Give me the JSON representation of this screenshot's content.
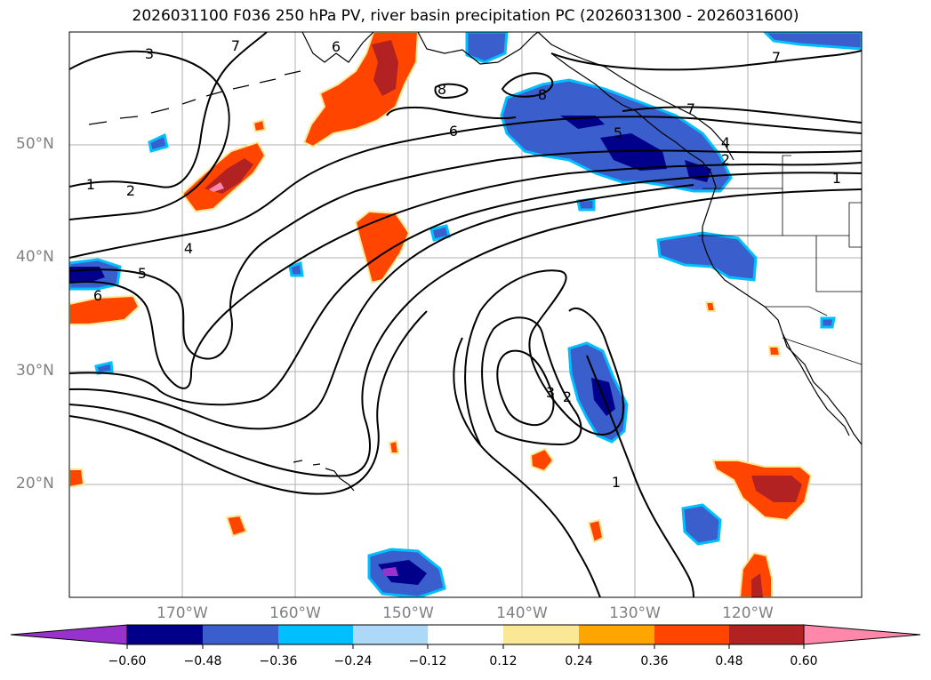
{
  "title": "2026031100 F036 250 hPa PV, river basin precipitation PC (2026031300 - 2026031600)",
  "lat_labels": [
    "50°N",
    "40°N",
    "30°N",
    "20°N"
  ],
  "lon_labels": [
    "170°W",
    "160°W",
    "150°W",
    "140°W",
    "130°W",
    "120°W"
  ],
  "colorbar": {
    "ticks": [
      "−0.60",
      "−0.48",
      "−0.36",
      "−0.24",
      "−0.12",
      "0.12",
      "0.24",
      "0.36",
      "0.48",
      "0.60"
    ],
    "colors": [
      "#9932cc",
      "#00008b",
      "#3a5fcd",
      "#00bfff",
      "#add8f7",
      "#ffffff",
      "#fbe897",
      "#ffa500",
      "#ff4500",
      "#b22222",
      "#ff88aa"
    ]
  },
  "contour_labels": [
    "3",
    "7",
    "6",
    "8",
    "8",
    "7",
    "7",
    "1",
    "2",
    "6",
    "5",
    "4",
    "2",
    "1",
    "4",
    "5",
    "6",
    "3",
    "2",
    "1"
  ],
  "colors": {
    "pos_light": "#fbe897",
    "pos_orange": "#ffa500",
    "pos_redorange": "#ff4500",
    "pos_firebrick": "#b22222",
    "pos_pink": "#ff88aa",
    "neg_lightblue": "#add8f7",
    "neg_deepsky": "#00bfff",
    "neg_royal": "#3a5fcd",
    "neg_navy": "#00008b",
    "neg_purple": "#9932cc"
  }
}
